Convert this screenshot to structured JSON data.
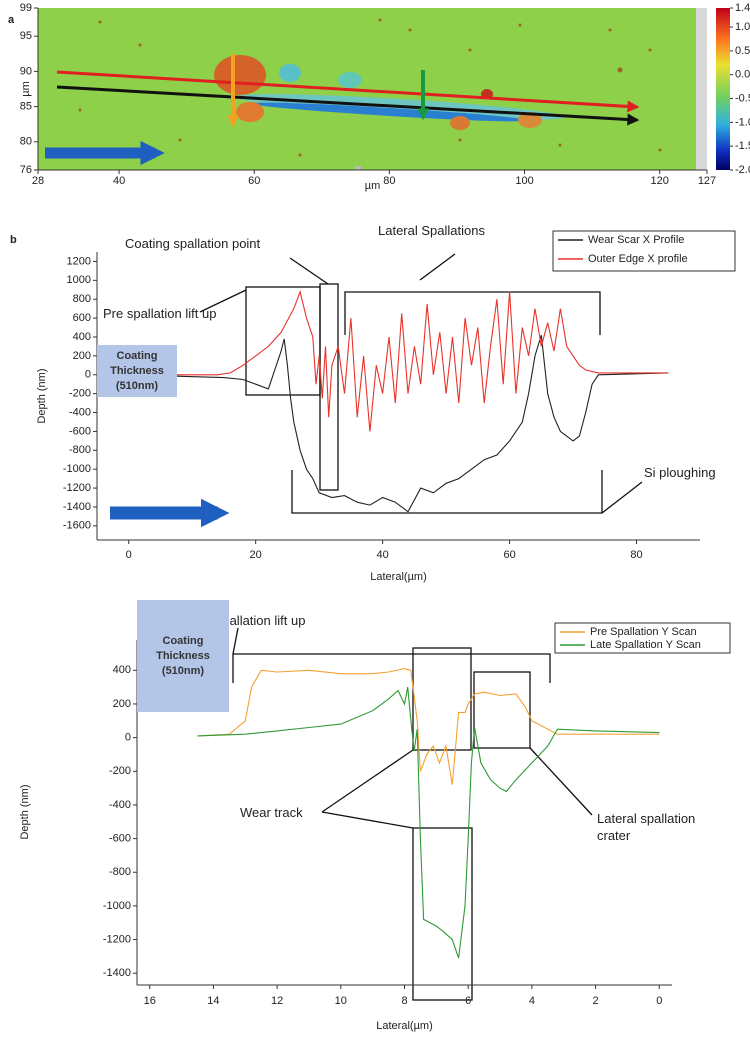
{
  "chart_data": [
    {
      "type": "heatmap",
      "panel": "a",
      "xlabel": "µm",
      "ylabel": "µm",
      "xlim": [
        28,
        127
      ],
      "xticks": [
        28,
        40,
        60,
        80,
        100,
        120,
        127
      ],
      "ylim": [
        76,
        99
      ],
      "yticks": [
        76,
        80,
        85,
        90,
        95,
        99
      ],
      "colorbar_lim": [
        -2,
        1.4
      ],
      "colorbar_ticks": [
        1.4,
        {
          "value": 1,
          "label": "1.0"
        },
        0.5,
        {
          "value": 0,
          "label": "0.0"
        },
        -0.5,
        {
          "value": -1,
          "label": "-1.0"
        },
        -1.5,
        {
          "value": -2,
          "label": "-2.0"
        }
      ]
    },
    {
      "type": "line",
      "panel": "b",
      "xlabel": "Lateral(µm)",
      "ylabel": "Depth (nm)",
      "xlim": [
        -5,
        90
      ],
      "xticks": [
        0,
        20,
        40,
        60,
        80
      ],
      "ylim": [
        -1750,
        1300
      ],
      "yticks": [
        -1600,
        -1400,
        -1200,
        -1000,
        -800,
        -600,
        -400,
        -200,
        0,
        200,
        400,
        600,
        800,
        1000,
        1200
      ],
      "annotations": [
        "Coating spallation point",
        "Lateral Spallations",
        "Pre spallation lift up",
        "Si ploughing",
        "Coating Thickness (510nm)"
      ],
      "series": [
        {
          "name": "Wear Scar X Profile",
          "color": "#222222",
          "x": [
            0,
            15,
            18,
            20,
            22,
            24,
            24.5,
            25,
            25.5,
            26,
            27,
            28,
            29,
            30,
            32,
            34,
            36,
            38,
            40,
            42,
            44,
            46,
            48,
            50,
            52,
            54,
            56,
            58,
            60,
            62,
            63,
            64,
            65,
            66,
            67,
            68,
            70,
            71,
            72,
            73,
            74,
            85
          ],
          "values": [
            0,
            -30,
            -50,
            -100,
            -150,
            250,
            380,
            100,
            -250,
            -500,
            -800,
            -1000,
            -1100,
            -1250,
            -1300,
            -1280,
            -1350,
            -1380,
            -1300,
            -1350,
            -1450,
            -1200,
            -1250,
            -1150,
            -1100,
            -1000,
            -900,
            -850,
            -700,
            -500,
            -200,
            200,
            420,
            -200,
            -450,
            -600,
            -700,
            -650,
            -400,
            -100,
            0,
            20
          ]
        },
        {
          "name": "Outer Edge X profile",
          "color": "#e8322a",
          "x": [
            0,
            14,
            16,
            18,
            20,
            22,
            24,
            26,
            27,
            28,
            29,
            29.5,
            30,
            30.5,
            31,
            31.5,
            32,
            33,
            34,
            35,
            36,
            37,
            38,
            39,
            40,
            41,
            42,
            43,
            44,
            45,
            46,
            47,
            48,
            49,
            50,
            51,
            52,
            53,
            54,
            55,
            56,
            57,
            58,
            59,
            60,
            61,
            62,
            63,
            64,
            65,
            66,
            67,
            68,
            69,
            70,
            71,
            72,
            74,
            85
          ],
          "values": [
            0,
            0,
            20,
            100,
            200,
            300,
            450,
            700,
            880,
            600,
            400,
            -100,
            200,
            -250,
            300,
            -450,
            100,
            300,
            -200,
            600,
            -450,
            200,
            -600,
            100,
            -200,
            400,
            -300,
            650,
            -200,
            300,
            -100,
            750,
            0,
            450,
            -200,
            400,
            -300,
            600,
            100,
            500,
            -300,
            300,
            800,
            -100,
            880,
            -200,
            500,
            200,
            700,
            300,
            550,
            250,
            700,
            300,
            200,
            100,
            50,
            20,
            20
          ]
        }
      ]
    },
    {
      "type": "line",
      "panel": "c",
      "xlabel": "Lateral(µm)",
      "ylabel": "Depth (nm)",
      "xlim": [
        16.4,
        -0.4
      ],
      "xticks": [
        16,
        14,
        12,
        10,
        8,
        6,
        4,
        2,
        0
      ],
      "ylim": [
        -1470,
        580
      ],
      "yticks": [
        -1400,
        -1200,
        -1000,
        -800,
        -600,
        -400,
        -200,
        0,
        200,
        400
      ],
      "annotations": [
        "Pre spallation lift up",
        "Wear track",
        "Lateral spallation crater",
        "Coating Thickness (510nm)"
      ],
      "series": [
        {
          "name": "Pre Spallation Y Scan",
          "color": "#f5a033",
          "x": [
            14.5,
            13.5,
            13,
            12.8,
            12.5,
            12,
            11,
            10,
            9,
            8.5,
            8,
            7.8,
            7.6,
            7.5,
            7.3,
            7.1,
            6.9,
            6.7,
            6.5,
            6.3,
            6.1,
            6,
            5.8,
            5.5,
            5,
            4.5,
            4.2,
            4,
            3.5,
            3.2,
            2,
            0
          ],
          "values": [
            10,
            20,
            100,
            300,
            400,
            390,
            400,
            380,
            380,
            390,
            410,
            400,
            100,
            -200,
            -100,
            -50,
            -150,
            -50,
            -280,
            150,
            150,
            200,
            260,
            270,
            250,
            260,
            180,
            100,
            50,
            20,
            20,
            20
          ]
        },
        {
          "name": "Late Spallation Y Scan",
          "color": "#2e9a35",
          "x": [
            14.5,
            13,
            12,
            11,
            10,
            9,
            8.5,
            8.2,
            8,
            7.9,
            7.8,
            7.7,
            7.6,
            7.5,
            7.4,
            7.2,
            7,
            6.8,
            6.5,
            6.3,
            6.1,
            6,
            5.9,
            5.8,
            5.6,
            5.3,
            5,
            4.8,
            4.5,
            4,
            3.5,
            3.2,
            2,
            0
          ],
          "values": [
            10,
            20,
            40,
            60,
            80,
            160,
            230,
            280,
            200,
            300,
            100,
            -80,
            50,
            -600,
            -1080,
            -1100,
            -1120,
            -1150,
            -1200,
            -1310,
            -1000,
            -600,
            -150,
            60,
            -150,
            -250,
            -300,
            -320,
            -250,
            -150,
            -50,
            50,
            40,
            30
          ]
        }
      ]
    }
  ]
}
